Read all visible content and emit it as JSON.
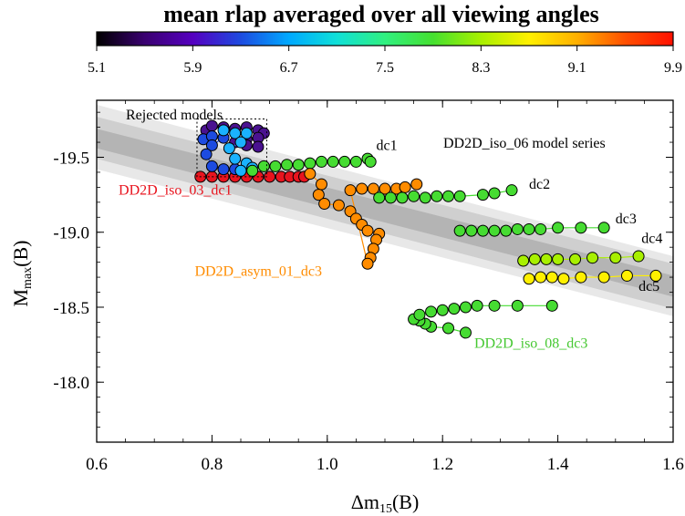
{
  "chart_data": {
    "type": "scatter",
    "title": "mean rlap averaged over all viewing angles",
    "xlabel": "Δm15(B)",
    "ylabel": "Mmax(B)",
    "xlim": [
      0.6,
      1.6
    ],
    "ylim": [
      -17.6,
      -19.88
    ],
    "xticks": [
      0.6,
      0.8,
      1.0,
      1.2,
      1.4,
      1.6
    ],
    "xtick_labels": [
      "0.6",
      "0.8",
      "1.0",
      "1.2",
      "1.4",
      "1.6"
    ],
    "yticks": [
      -19.5,
      -19.0,
      -18.5,
      -18.0
    ],
    "ytick_labels": [
      "-19.5",
      "-19.0",
      "-18.5",
      "-18.0"
    ],
    "colorbar": {
      "range": [
        5.1,
        9.9
      ],
      "ticks": [
        "5.1",
        "5.9",
        "6.7",
        "7.5",
        "8.3",
        "9.1",
        "9.9"
      ],
      "colors": [
        "#000000",
        "#3a0070",
        "#5500c0",
        "#1d4be0",
        "#00a9ff",
        "#10e0d8",
        "#30f080",
        "#45e030",
        "#a8f000",
        "#fff000",
        "#ffb000",
        "#ff5000",
        "#ff1000"
      ]
    },
    "bands": [
      {
        "name": "outer band",
        "x0": 0.6,
        "y0_top": -19.85,
        "y0_bot": -19.42,
        "x1": 1.6,
        "y1_top": -18.84,
        "y1_bot": -18.44,
        "color": "#e8e8e8"
      },
      {
        "name": "middle band",
        "x0": 0.6,
        "y0_top": -19.77,
        "y0_bot": -19.49,
        "x1": 1.6,
        "y1_top": -18.79,
        "y1_bot": -18.49,
        "color": "#cfcfcf"
      },
      {
        "name": "inner band",
        "x0": 0.6,
        "y0_top": -19.69,
        "y0_bot": -19.56,
        "x1": 1.6,
        "y1_top": -18.71,
        "y1_bot": -18.57,
        "color": "#b4b4b4"
      }
    ],
    "rejected_box": {
      "label": "Rejected models",
      "x": [
        0.774,
        0.895
      ],
      "y": [
        -19.37,
        -19.755
      ]
    },
    "series_label": "DD2D_iso_06 model series",
    "series": [
      {
        "name": "DD2D_iso_03_dc1",
        "color": "#e8141e",
        "line_color": "#e8141e",
        "points": [
          [
            0.78,
            -19.37
          ],
          [
            0.8,
            -19.37
          ],
          [
            0.82,
            -19.37
          ],
          [
            0.84,
            -19.37
          ],
          [
            0.86,
            -19.37
          ],
          [
            0.88,
            -19.37
          ],
          [
            0.9,
            -19.37
          ],
          [
            0.92,
            -19.37
          ],
          [
            0.935,
            -19.37
          ],
          [
            0.95,
            -19.37
          ],
          [
            0.96,
            -19.37
          ]
        ]
      },
      {
        "name": "rejected-dark",
        "color": "#4a1290",
        "line_color": "#4a1290",
        "points": [
          [
            0.79,
            -19.68
          ],
          [
            0.8,
            -19.71
          ],
          [
            0.82,
            -19.7
          ],
          [
            0.84,
            -19.69
          ],
          [
            0.86,
            -19.7
          ],
          [
            0.88,
            -19.68
          ],
          [
            0.89,
            -19.66
          ],
          [
            0.88,
            -19.63
          ],
          [
            0.86,
            -19.62
          ],
          [
            0.84,
            -19.6
          ],
          [
            0.86,
            -19.58
          ],
          [
            0.88,
            -19.57
          ]
        ]
      },
      {
        "name": "rejected-blue",
        "color": "#1d4be0",
        "line_color": "#1d4be0",
        "points": [
          [
            0.785,
            -19.62
          ],
          [
            0.8,
            -19.64
          ],
          [
            0.82,
            -19.63
          ],
          [
            0.8,
            -19.58
          ],
          [
            0.79,
            -19.52
          ],
          [
            0.8,
            -19.44
          ],
          [
            0.82,
            -19.42
          ],
          [
            0.84,
            -19.42
          ]
        ]
      },
      {
        "name": "rejected-cyan",
        "color": "#1ab2ff",
        "line_color": "#1ab2ff",
        "points": [
          [
            0.82,
            -19.68
          ],
          [
            0.84,
            -19.66
          ],
          [
            0.86,
            -19.66
          ],
          [
            0.85,
            -19.6
          ],
          [
            0.83,
            -19.56
          ],
          [
            0.84,
            -19.49
          ],
          [
            0.86,
            -19.46
          ],
          [
            0.87,
            -19.43
          ],
          [
            0.85,
            -19.41
          ]
        ]
      },
      {
        "name": "dc1",
        "color": "#46dc32",
        "line_color": "#46dc32",
        "points": [
          [
            0.87,
            -19.41
          ],
          [
            0.89,
            -19.44
          ],
          [
            0.91,
            -19.44
          ],
          [
            0.93,
            -19.45
          ],
          [
            0.95,
            -19.45
          ],
          [
            0.97,
            -19.46
          ],
          [
            0.99,
            -19.47
          ],
          [
            1.01,
            -19.47
          ],
          [
            1.03,
            -19.47
          ],
          [
            1.05,
            -19.47
          ],
          [
            1.07,
            -19.49
          ],
          [
            1.075,
            -19.47
          ]
        ]
      },
      {
        "name": "DD2D_asym_01_dc3",
        "color": "#ff8c00",
        "line_color": "#ff8c00",
        "points": [
          [
            0.97,
            -19.39
          ],
          [
            0.99,
            -19.32
          ],
          [
            0.985,
            -19.25
          ],
          [
            0.995,
            -19.19
          ],
          [
            1.02,
            -19.18
          ],
          [
            1.04,
            -19.14
          ],
          [
            1.05,
            -19.09
          ],
          [
            1.06,
            -19.05
          ],
          [
            1.07,
            -19.01
          ],
          [
            1.09,
            -18.99
          ],
          [
            1.085,
            -18.95
          ],
          [
            1.08,
            -18.89
          ],
          [
            1.075,
            -18.83
          ],
          [
            1.07,
            -18.79
          ],
          [
            1.04,
            -19.28
          ],
          [
            1.06,
            -19.29
          ],
          [
            1.08,
            -19.29
          ],
          [
            1.1,
            -19.29
          ],
          [
            1.12,
            -19.29
          ],
          [
            1.135,
            -19.3
          ],
          [
            1.155,
            -19.32
          ]
        ]
      },
      {
        "name": "dc2",
        "color": "#46dc32",
        "line_color": "#46dc32",
        "points": [
          [
            1.09,
            -19.23
          ],
          [
            1.11,
            -19.23
          ],
          [
            1.13,
            -19.23
          ],
          [
            1.15,
            -19.24
          ],
          [
            1.17,
            -19.23
          ],
          [
            1.19,
            -19.24
          ],
          [
            1.21,
            -19.24
          ],
          [
            1.23,
            -19.24
          ],
          [
            1.27,
            -19.25
          ],
          [
            1.29,
            -19.26
          ],
          [
            1.32,
            -19.28
          ]
        ]
      },
      {
        "name": "dc3",
        "color": "#46dc32",
        "line_color": "#46dc32",
        "points": [
          [
            1.23,
            -19.01
          ],
          [
            1.25,
            -19.01
          ],
          [
            1.27,
            -19.01
          ],
          [
            1.29,
            -19.01
          ],
          [
            1.31,
            -19.01
          ],
          [
            1.33,
            -19.02
          ],
          [
            1.35,
            -19.02
          ],
          [
            1.37,
            -19.02
          ],
          [
            1.4,
            -19.03
          ],
          [
            1.44,
            -19.03
          ],
          [
            1.48,
            -19.03
          ]
        ]
      },
      {
        "name": "dc4",
        "color": "#a8f000",
        "line_color": "#a8f000",
        "points": [
          [
            1.34,
            -18.81
          ],
          [
            1.36,
            -18.82
          ],
          [
            1.38,
            -18.82
          ],
          [
            1.4,
            -18.82
          ],
          [
            1.43,
            -18.82
          ],
          [
            1.46,
            -18.83
          ],
          [
            1.5,
            -18.83
          ],
          [
            1.54,
            -18.84
          ]
        ]
      },
      {
        "name": "dc5",
        "color": "#fff000",
        "line_color": "#fff000",
        "points": [
          [
            1.35,
            -18.69
          ],
          [
            1.37,
            -18.7
          ],
          [
            1.39,
            -18.7
          ],
          [
            1.41,
            -18.69
          ],
          [
            1.44,
            -18.7
          ],
          [
            1.48,
            -18.7
          ],
          [
            1.52,
            -18.71
          ],
          [
            1.57,
            -18.71
          ]
        ]
      },
      {
        "name": "DD2D_iso_08_dc3",
        "color": "#46dc32",
        "line_color": "#46dc32",
        "points": [
          [
            1.24,
            -18.33
          ],
          [
            1.21,
            -18.36
          ],
          [
            1.18,
            -18.37
          ],
          [
            1.17,
            -18.39
          ],
          [
            1.16,
            -18.41
          ],
          [
            1.15,
            -18.42
          ],
          [
            1.16,
            -18.45
          ],
          [
            1.18,
            -18.47
          ],
          [
            1.2,
            -18.48
          ],
          [
            1.22,
            -18.49
          ],
          [
            1.24,
            -18.5
          ],
          [
            1.26,
            -18.51
          ],
          [
            1.29,
            -18.51
          ],
          [
            1.33,
            -18.51
          ],
          [
            1.39,
            -18.51
          ]
        ]
      }
    ],
    "annotations": [
      {
        "text": "dc1",
        "x": 1.085,
        "y": -19.55,
        "color": "#000000"
      },
      {
        "text": "dc2",
        "x": 1.35,
        "y": -19.29,
        "color": "#000000"
      },
      {
        "text": "dc3",
        "x": 1.5,
        "y": -19.06,
        "color": "#000000"
      },
      {
        "text": "dc4",
        "x": 1.545,
        "y": -18.93,
        "color": "#000000"
      },
      {
        "text": "dc5",
        "x": 1.54,
        "y": -18.61,
        "color": "#000000"
      },
      {
        "text": "DD2D_iso_03_dc1",
        "x": 0.638,
        "y": -19.25,
        "color": "#e8141e"
      },
      {
        "text": "DD2D_asym_01_dc3",
        "x": 0.77,
        "y": -18.71,
        "color": "#ff8c00"
      },
      {
        "text": "DD2D_iso_08_dc3",
        "x": 1.255,
        "y": -18.23,
        "color": "#46c832"
      }
    ]
  }
}
